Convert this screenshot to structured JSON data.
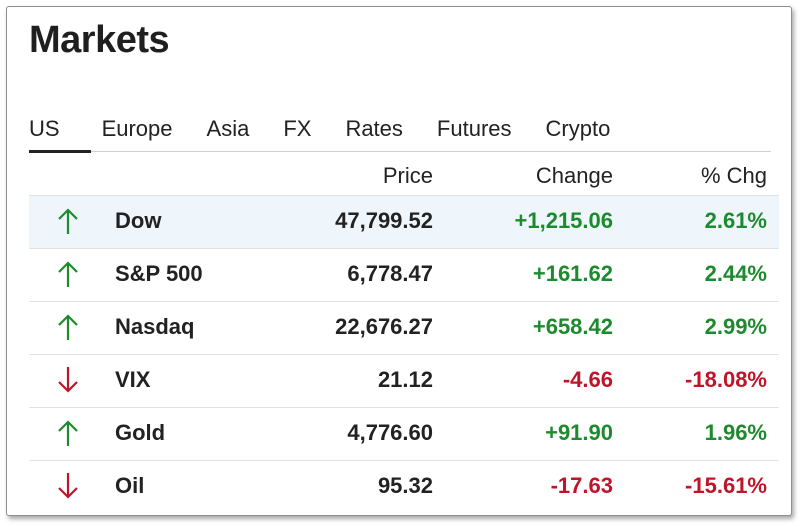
{
  "header": {
    "title": "Markets"
  },
  "tabs": [
    {
      "label": "US"
    },
    {
      "label": "Europe"
    },
    {
      "label": "Asia"
    },
    {
      "label": "FX"
    },
    {
      "label": "Rates"
    },
    {
      "label": "Futures"
    },
    {
      "label": "Crypto"
    }
  ],
  "active_tab": "US",
  "table": {
    "headers": {
      "price": "Price",
      "change": "Change",
      "pct": "% Chg"
    },
    "rows": [
      {
        "name": "Dow",
        "price": "47,799.52",
        "change": "+1,215.06",
        "pct": "2.61%",
        "direction": "up",
        "icon": "arrow-up-icon"
      },
      {
        "name": "S&P 500",
        "price": "6,778.47",
        "change": "+161.62",
        "pct": "2.44%",
        "direction": "up",
        "icon": "arrow-up-icon"
      },
      {
        "name": "Nasdaq",
        "price": "22,676.27",
        "change": "+658.42",
        "pct": "2.99%",
        "direction": "up",
        "icon": "arrow-up-icon"
      },
      {
        "name": "VIX",
        "price": "21.12",
        "change": "-4.66",
        "pct": "-18.08%",
        "direction": "down",
        "icon": "arrow-down-icon"
      },
      {
        "name": "Gold",
        "price": "4,776.60",
        "change": "+91.90",
        "pct": "1.96%",
        "direction": "up",
        "icon": "arrow-up-icon"
      },
      {
        "name": "Oil",
        "price": "95.32",
        "change": "-17.63",
        "pct": "-15.61%",
        "direction": "down",
        "icon": "arrow-down-icon"
      }
    ]
  },
  "colors": {
    "up": "#1e8a2e",
    "down": "#c0142a",
    "highlight_row": "#eef6fb"
  }
}
